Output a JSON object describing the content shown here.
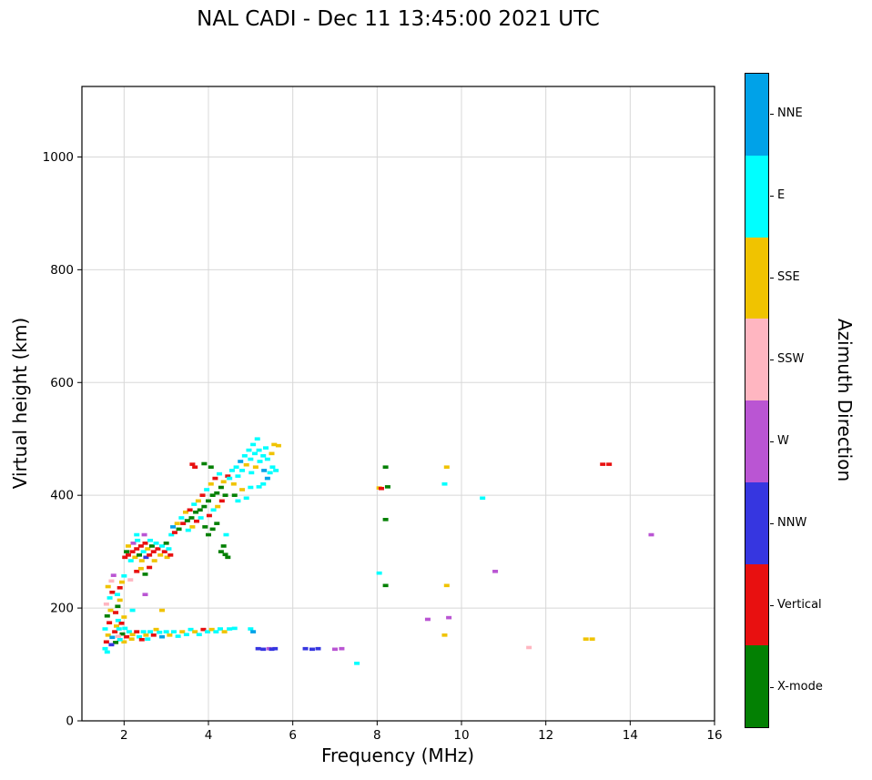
{
  "title": "NAL CADI - Dec 11 13:45:00 2021 UTC",
  "chart_data": {
    "type": "scatter",
    "title": "NAL CADI - Dec 11 13:45:00 2021 UTC",
    "xlabel": "Frequency (MHz)",
    "ylabel": "Virtual height (km)",
    "xlim": [
      1,
      16
    ],
    "ylim": [
      0,
      1125
    ],
    "xticks": [
      2,
      4,
      6,
      8,
      10,
      12,
      14,
      16
    ],
    "yticks": [
      0,
      200,
      400,
      600,
      800,
      1000
    ],
    "grid": true,
    "grid_color": "#d8d8d8",
    "marker": "horizontal-dash",
    "colorbar": {
      "label": "Azimuth Direction",
      "position": "right",
      "categories": [
        {
          "key": "NNE",
          "label": "NNE",
          "color": "#00A2E8"
        },
        {
          "key": "E",
          "label": "E",
          "color": "#00FFFF"
        },
        {
          "key": "SSE",
          "label": "SSE",
          "color": "#F0C300"
        },
        {
          "key": "SSW",
          "label": "SSW",
          "color": "#FFB6C1"
        },
        {
          "key": "W",
          "label": "W",
          "color": "#BA55D3"
        },
        {
          "key": "NNW",
          "label": "NNW",
          "color": "#3636E0"
        },
        {
          "key": "V",
          "label": "Vertical",
          "color": "#E81010"
        },
        {
          "key": "X",
          "label": "X-mode",
          "color": "#038003"
        }
      ]
    },
    "points_format": [
      "frequency_mhz",
      "virtual_height_km",
      "azimuth_key"
    ],
    "points": [
      [
        1.55,
        128,
        "E"
      ],
      [
        1.6,
        122,
        "E"
      ],
      [
        1.58,
        140,
        "V"
      ],
      [
        1.62,
        152,
        "SSE"
      ],
      [
        1.55,
        163,
        "E"
      ],
      [
        1.65,
        174,
        "V"
      ],
      [
        1.6,
        186,
        "X"
      ],
      [
        1.68,
        196,
        "SSE"
      ],
      [
        1.58,
        207,
        "SSW"
      ],
      [
        1.66,
        218,
        "E"
      ],
      [
        1.72,
        228,
        "V"
      ],
      [
        1.62,
        238,
        "SSE"
      ],
      [
        1.7,
        248,
        "SSW"
      ],
      [
        1.75,
        258,
        "W"
      ],
      [
        1.72,
        148,
        "NNE"
      ],
      [
        1.78,
        158,
        "V"
      ],
      [
        1.82,
        168,
        "SSE"
      ],
      [
        1.86,
        178,
        "E"
      ],
      [
        1.8,
        192,
        "V"
      ],
      [
        1.85,
        203,
        "X"
      ],
      [
        1.9,
        214,
        "SSE"
      ],
      [
        1.84,
        224,
        "E"
      ],
      [
        1.9,
        236,
        "V"
      ],
      [
        1.95,
        246,
        "SSE"
      ],
      [
        1.88,
        163,
        "E"
      ],
      [
        1.94,
        173,
        "V"
      ],
      [
        2.0,
        184,
        "SSE"
      ],
      [
        1.96,
        154,
        "X"
      ],
      [
        2.02,
        164,
        "E"
      ],
      [
        2.06,
        149,
        "V"
      ],
      [
        2.0,
        140,
        "SSE"
      ],
      [
        1.9,
        144,
        "E"
      ],
      [
        1.8,
        139,
        "X"
      ],
      [
        2.0,
        257,
        "E"
      ],
      [
        1.7,
        135,
        "NNW"
      ],
      [
        1.86,
        150,
        "SSW"
      ],
      [
        2.12,
        158,
        "E"
      ],
      [
        2.2,
        153,
        "SSE"
      ],
      [
        2.18,
        145,
        "SSE"
      ],
      [
        2.3,
        158,
        "V"
      ],
      [
        2.36,
        149,
        "E"
      ],
      [
        2.42,
        144,
        "V"
      ],
      [
        2.46,
        158,
        "E"
      ],
      [
        2.52,
        152,
        "SSE"
      ],
      [
        2.56,
        145,
        "E"
      ],
      [
        2.62,
        158,
        "E"
      ],
      [
        2.7,
        152,
        "V"
      ],
      [
        2.76,
        162,
        "SSE"
      ],
      [
        2.84,
        157,
        "E"
      ],
      [
        2.9,
        149,
        "NNE"
      ],
      [
        3.0,
        158,
        "E"
      ],
      [
        3.08,
        152,
        "SSE"
      ],
      [
        3.18,
        158,
        "E"
      ],
      [
        3.28,
        150,
        "E"
      ],
      [
        3.38,
        158,
        "SSE"
      ],
      [
        3.48,
        153,
        "E"
      ],
      [
        3.58,
        162,
        "E"
      ],
      [
        3.68,
        158,
        "SSE"
      ],
      [
        3.78,
        153,
        "E"
      ],
      [
        3.88,
        162,
        "V"
      ],
      [
        3.98,
        158,
        "E"
      ],
      [
        4.08,
        162,
        "SSE"
      ],
      [
        4.18,
        158,
        "E"
      ],
      [
        4.28,
        163,
        "E"
      ],
      [
        4.38,
        158,
        "SSE"
      ],
      [
        4.5,
        163,
        "E"
      ],
      [
        4.62,
        164,
        "E"
      ],
      [
        5.0,
        163,
        "E"
      ],
      [
        5.06,
        158,
        "NNE"
      ],
      [
        2.2,
        196,
        "E"
      ],
      [
        2.5,
        224,
        "W"
      ],
      [
        2.9,
        196,
        "SSE"
      ],
      [
        2.3,
        265,
        "V"
      ],
      [
        2.4,
        270,
        "SSE"
      ],
      [
        2.5,
        260,
        "X"
      ],
      [
        2.6,
        272,
        "V"
      ],
      [
        2.15,
        250,
        "SSW"
      ],
      [
        2.02,
        290,
        "V"
      ],
      [
        2.06,
        300,
        "X"
      ],
      [
        2.1,
        294,
        "V"
      ],
      [
        2.1,
        310,
        "SSE"
      ],
      [
        2.16,
        284,
        "E"
      ],
      [
        2.2,
        300,
        "V"
      ],
      [
        2.22,
        315,
        "W"
      ],
      [
        2.26,
        290,
        "SSE"
      ],
      [
        2.3,
        305,
        "V"
      ],
      [
        2.32,
        320,
        "E"
      ],
      [
        2.36,
        294,
        "X"
      ],
      [
        2.4,
        310,
        "V"
      ],
      [
        2.42,
        284,
        "SSE"
      ],
      [
        2.46,
        300,
        "E"
      ],
      [
        2.5,
        315,
        "V"
      ],
      [
        2.52,
        290,
        "NNW"
      ],
      [
        2.56,
        305,
        "SSE"
      ],
      [
        2.6,
        294,
        "V"
      ],
      [
        2.62,
        320,
        "E"
      ],
      [
        2.66,
        310,
        "X"
      ],
      [
        2.7,
        300,
        "V"
      ],
      [
        2.72,
        284,
        "SSE"
      ],
      [
        2.76,
        315,
        "E"
      ],
      [
        2.8,
        305,
        "V"
      ],
      [
        2.86,
        294,
        "SSE"
      ],
      [
        2.9,
        310,
        "E"
      ],
      [
        2.96,
        300,
        "V"
      ],
      [
        3.0,
        315,
        "X"
      ],
      [
        3.02,
        290,
        "SSE"
      ],
      [
        3.06,
        305,
        "E"
      ],
      [
        3.1,
        294,
        "V"
      ],
      [
        2.48,
        330,
        "W"
      ],
      [
        2.3,
        330,
        "E"
      ],
      [
        3.12,
        330,
        "E"
      ],
      [
        3.16,
        344,
        "NNE"
      ],
      [
        3.2,
        334,
        "V"
      ],
      [
        3.26,
        350,
        "SSE"
      ],
      [
        3.3,
        340,
        "X"
      ],
      [
        3.36,
        360,
        "E"
      ],
      [
        3.4,
        350,
        "V"
      ],
      [
        3.46,
        370,
        "SSE"
      ],
      [
        3.5,
        355,
        "X"
      ],
      [
        3.52,
        338,
        "E"
      ],
      [
        3.56,
        374,
        "V"
      ],
      [
        3.6,
        360,
        "X"
      ],
      [
        3.62,
        344,
        "SSE"
      ],
      [
        3.66,
        384,
        "E"
      ],
      [
        3.7,
        370,
        "X"
      ],
      [
        3.72,
        354,
        "V"
      ],
      [
        3.76,
        390,
        "SSE"
      ],
      [
        3.8,
        374,
        "X"
      ],
      [
        3.82,
        360,
        "E"
      ],
      [
        3.86,
        400,
        "V"
      ],
      [
        3.9,
        380,
        "X"
      ],
      [
        3.92,
        344,
        "X"
      ],
      [
        3.96,
        410,
        "E"
      ],
      [
        4.0,
        390,
        "X"
      ],
      [
        4.02,
        364,
        "V"
      ],
      [
        4.0,
        330,
        "X"
      ],
      [
        4.06,
        420,
        "SSE"
      ],
      [
        4.1,
        400,
        "X"
      ],
      [
        4.12,
        374,
        "E"
      ],
      [
        4.1,
        340,
        "X"
      ],
      [
        4.16,
        430,
        "V"
      ],
      [
        4.2,
        404,
        "X"
      ],
      [
        4.22,
        380,
        "SSE"
      ],
      [
        4.2,
        350,
        "X"
      ],
      [
        4.26,
        438,
        "E"
      ],
      [
        4.3,
        414,
        "X"
      ],
      [
        4.32,
        390,
        "V"
      ],
      [
        4.3,
        300,
        "X"
      ],
      [
        4.36,
        424,
        "SSE"
      ],
      [
        4.4,
        400,
        "X"
      ],
      [
        4.36,
        310,
        "X"
      ],
      [
        4.42,
        330,
        "E"
      ],
      [
        4.46,
        434,
        "V"
      ],
      [
        3.62,
        455,
        "V"
      ],
      [
        3.68,
        450,
        "V"
      ],
      [
        3.9,
        456,
        "X"
      ],
      [
        4.06,
        450,
        "X"
      ],
      [
        4.46,
        290,
        "X"
      ],
      [
        4.4,
        295,
        "X"
      ],
      [
        4.5,
        430,
        "E"
      ],
      [
        4.56,
        444,
        "E"
      ],
      [
        4.6,
        420,
        "SSE"
      ],
      [
        4.66,
        450,
        "E"
      ],
      [
        4.7,
        434,
        "E"
      ],
      [
        4.76,
        460,
        "NNE"
      ],
      [
        4.8,
        444,
        "E"
      ],
      [
        4.86,
        470,
        "E"
      ],
      [
        4.9,
        454,
        "SSE"
      ],
      [
        4.96,
        480,
        "E"
      ],
      [
        5.0,
        464,
        "E"
      ],
      [
        5.02,
        440,
        "E"
      ],
      [
        5.06,
        490,
        "E"
      ],
      [
        5.1,
        474,
        "E"
      ],
      [
        5.12,
        450,
        "SSE"
      ],
      [
        5.16,
        500,
        "E"
      ],
      [
        5.2,
        480,
        "E"
      ],
      [
        5.22,
        460,
        "E"
      ],
      [
        5.3,
        470,
        "E"
      ],
      [
        5.32,
        444,
        "NNE"
      ],
      [
        5.36,
        484,
        "E"
      ],
      [
        5.4,
        464,
        "E"
      ],
      [
        5.46,
        440,
        "E"
      ],
      [
        5.5,
        474,
        "SSE"
      ],
      [
        5.52,
        450,
        "E"
      ],
      [
        5.56,
        490,
        "SSE"
      ],
      [
        5.6,
        444,
        "E"
      ],
      [
        5.66,
        488,
        "SSE"
      ],
      [
        4.62,
        400,
        "X"
      ],
      [
        4.8,
        410,
        "SSE"
      ],
      [
        5.0,
        414,
        "E"
      ],
      [
        4.7,
        390,
        "E"
      ],
      [
        4.9,
        395,
        "E"
      ],
      [
        5.2,
        415,
        "E"
      ],
      [
        5.3,
        420,
        "E"
      ],
      [
        5.4,
        430,
        "NNE"
      ],
      [
        5.18,
        128,
        "NNW"
      ],
      [
        5.3,
        127,
        "NNW"
      ],
      [
        5.44,
        128,
        "W"
      ],
      [
        5.5,
        127,
        "NNW"
      ],
      [
        5.58,
        128,
        "NNW"
      ],
      [
        6.3,
        128,
        "NNW"
      ],
      [
        6.46,
        127,
        "NNW"
      ],
      [
        6.6,
        128,
        "NNW"
      ],
      [
        7.0,
        127,
        "W"
      ],
      [
        7.16,
        128,
        "W"
      ],
      [
        7.52,
        102,
        "E"
      ],
      [
        8.2,
        450,
        "X"
      ],
      [
        8.05,
        413,
        "SSE"
      ],
      [
        8.1,
        412,
        "V"
      ],
      [
        8.25,
        415,
        "X"
      ],
      [
        8.2,
        357,
        "X"
      ],
      [
        8.05,
        262,
        "E"
      ],
      [
        8.2,
        240,
        "X"
      ],
      [
        9.2,
        180,
        "W"
      ],
      [
        9.65,
        450,
        "SSE"
      ],
      [
        9.6,
        420,
        "E"
      ],
      [
        9.65,
        240,
        "SSE"
      ],
      [
        9.7,
        183,
        "W"
      ],
      [
        9.6,
        152,
        "SSE"
      ],
      [
        10.5,
        395,
        "E"
      ],
      [
        10.8,
        265,
        "W"
      ],
      [
        11.6,
        130,
        "SSW"
      ],
      [
        12.95,
        145,
        "SSE"
      ],
      [
        13.1,
        145,
        "SSE"
      ],
      [
        13.35,
        455,
        "V"
      ],
      [
        13.5,
        455,
        "V"
      ],
      [
        14.5,
        330,
        "W"
      ]
    ]
  }
}
